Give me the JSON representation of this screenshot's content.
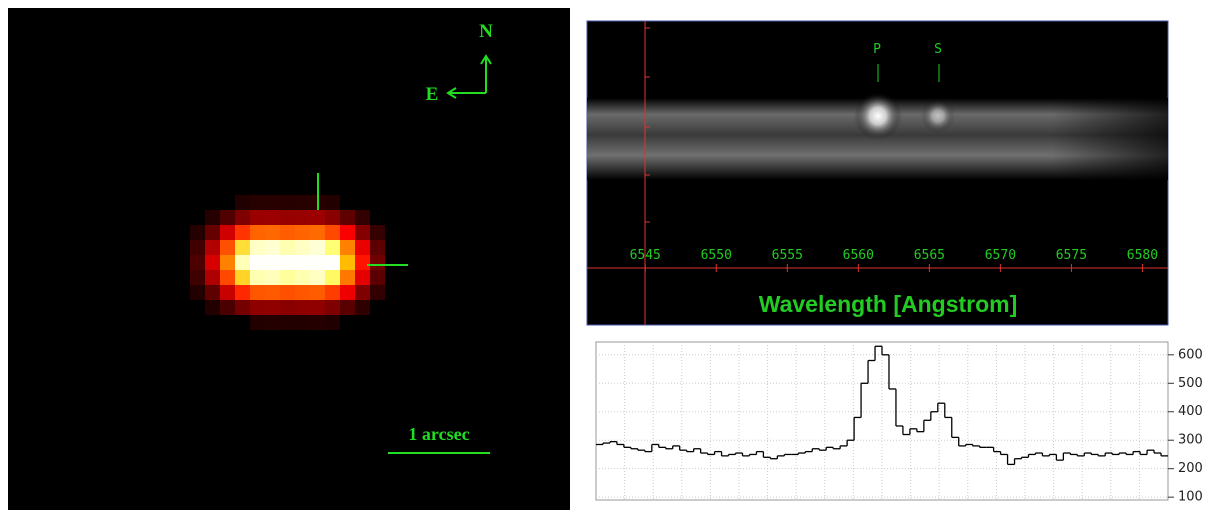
{
  "image": {
    "north_label": "N",
    "east_label": "E",
    "scale_label": "1 arcsec"
  },
  "spectrum_2d": {
    "xlabel": "Wavelength [Angstrom]",
    "xlim": [
      6540.9,
      6581.8
    ],
    "xticks": [
      6545,
      6550,
      6555,
      6560,
      6565,
      6570,
      6575,
      6580
    ],
    "line_labels": [
      "P",
      "S"
    ]
  },
  "chart_data": {
    "type": "line",
    "step": true,
    "color": "#000000",
    "grid": true,
    "ylim": [
      90,
      645
    ],
    "yticks": [
      100,
      200,
      300,
      400,
      500,
      600
    ],
    "values": [
      285,
      290,
      295,
      285,
      275,
      270,
      265,
      260,
      285,
      275,
      270,
      280,
      265,
      260,
      270,
      255,
      250,
      260,
      245,
      250,
      255,
      245,
      250,
      260,
      240,
      235,
      245,
      250,
      250,
      255,
      260,
      270,
      265,
      275,
      270,
      280,
      300,
      380,
      500,
      580,
      630,
      600,
      480,
      350,
      320,
      340,
      330,
      370,
      400,
      430,
      380,
      310,
      280,
      285,
      280,
      275,
      275,
      260,
      250,
      215,
      235,
      240,
      250,
      255,
      245,
      250,
      230,
      255,
      250,
      245,
      255,
      250,
      245,
      255,
      250,
      255,
      250,
      260,
      250,
      265,
      255,
      245
    ]
  }
}
